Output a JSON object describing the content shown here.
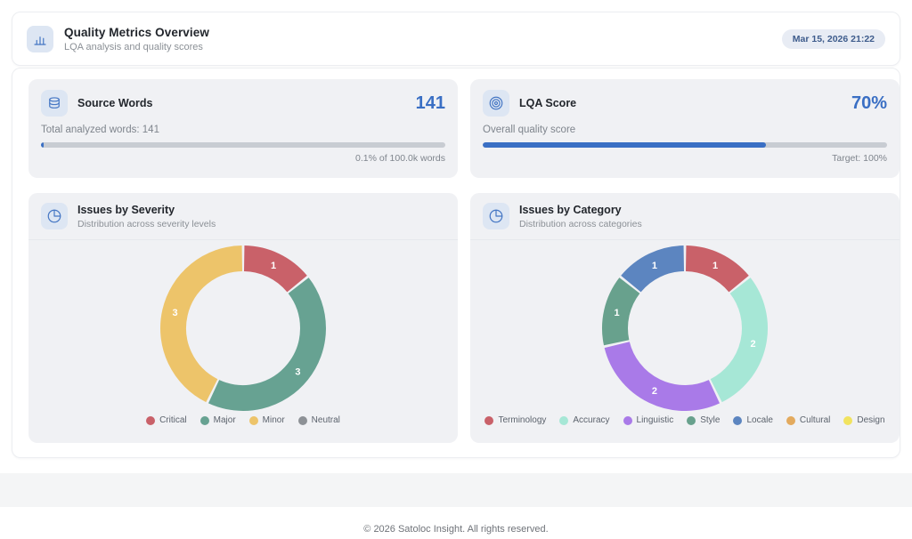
{
  "header": {
    "title": "Quality Metrics Overview",
    "subtitle": "LQA analysis and quality scores",
    "timestamp": "Mar 15, 2026 21:22"
  },
  "metrics": [
    {
      "title": "Source Words",
      "value": "141",
      "description": "Total analyzed words: 141",
      "progress_pct": 0.1,
      "caption": "0.1% of 100.0k words",
      "icon": "layers-icon"
    },
    {
      "title": "LQA Score",
      "value": "70%",
      "description": "Overall quality score",
      "progress_pct": 70,
      "caption": "Target: 100%",
      "icon": "target-icon"
    }
  ],
  "chart_data": [
    {
      "type": "pie",
      "donut": true,
      "title": "Issues by Severity",
      "subtitle": "Distribution across severity levels",
      "legend_position": "bottom",
      "categories": [
        "Critical",
        "Major",
        "Minor",
        "Neutral"
      ],
      "values": [
        1,
        3,
        3,
        0
      ],
      "colors": [
        "#c96169",
        "#67a292",
        "#edc46a",
        "#8d9196"
      ],
      "total": 7
    },
    {
      "type": "pie",
      "donut": true,
      "title": "Issues by Category",
      "subtitle": "Distribution across categories",
      "legend_position": "bottom",
      "categories": [
        "Terminology",
        "Accuracy",
        "Linguistic",
        "Style",
        "Locale",
        "Cultural",
        "Design"
      ],
      "values": [
        1,
        2,
        2,
        1,
        1,
        0,
        0
      ],
      "colors": [
        "#c96169",
        "#a6e7d6",
        "#a97ae8",
        "#68a18d",
        "#5c85c0",
        "#e3aa5e",
        "#f1e35f"
      ],
      "total": 7
    }
  ],
  "footer": {
    "text": "© 2026 Satoloc Insight. All rights reserved."
  },
  "colors": {
    "accent_blue": "#3a6fc4",
    "icon_tile_bg": "#dde6f3",
    "card_bg": "#f0f1f4",
    "track_gray": "#c8ccd2",
    "badge_bg": "#e8ecf4",
    "badge_text": "#3e5c8c"
  }
}
